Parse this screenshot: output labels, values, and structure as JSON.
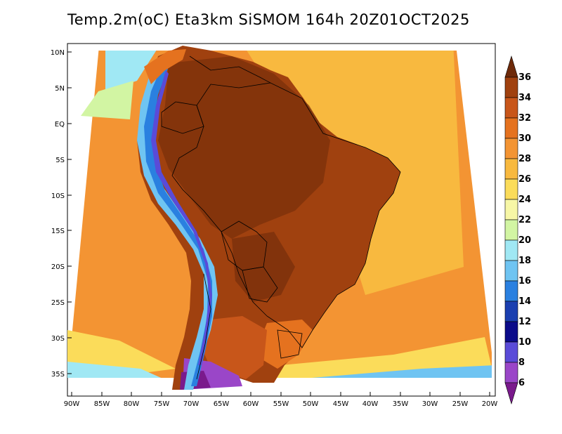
{
  "title": "Temp.2m(oC) Eta3km SiSMOM 164h 20Z01OCT2025",
  "map": {
    "lon_range": [
      -91,
      -20
    ],
    "lat_range": [
      -38,
      11
    ],
    "lat_labels": [
      "10N",
      "5N",
      "EQ",
      "5S",
      "10S",
      "15S",
      "20S",
      "25S",
      "30S",
      "35S"
    ],
    "lat_values": [
      10,
      5,
      0,
      -5,
      -10,
      -15,
      -20,
      -25,
      -30,
      -35
    ],
    "lon_labels": [
      "90W",
      "85W",
      "80W",
      "75W",
      "70W",
      "65W",
      "60W",
      "55W",
      "50W",
      "45W",
      "40W",
      "35W",
      "30W",
      "25W",
      "20W"
    ],
    "lon_values": [
      -90,
      -85,
      -80,
      -75,
      -70,
      -65,
      -60,
      -55,
      -50,
      -45,
      -40,
      -35,
      -30,
      -25,
      -20
    ],
    "variable": "2m temperature",
    "units": "oC"
  },
  "colorbar": {
    "labels": [
      "36",
      "34",
      "32",
      "30",
      "28",
      "26",
      "24",
      "22",
      "20",
      "18",
      "16",
      "14",
      "12",
      "10",
      "8",
      "6"
    ],
    "colors": [
      "#6e2a0a",
      "#a0410f",
      "#c8561a",
      "#e5721f",
      "#f39433",
      "#f8b93f",
      "#fbdc5a",
      "#f7f7a6",
      "#d2f5a3",
      "#a0e8f4",
      "#6fc4f2",
      "#2a80e0",
      "#1a3fb0",
      "#0b0b8a",
      "#5a4bd8",
      "#9a46c8",
      "#7a1a8c"
    ]
  }
}
